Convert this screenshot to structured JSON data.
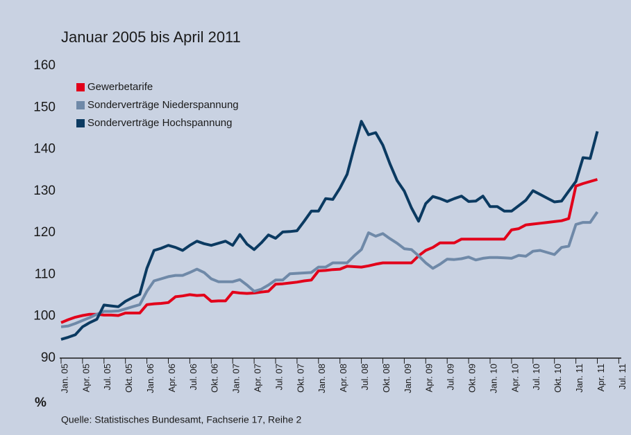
{
  "chart_data": {
    "type": "line",
    "title": "Januar 2005 bis April 2011",
    "y_label": "%",
    "source": "Quelle: Statistisches Bundesamt, Fachserie 17, Reihe 2",
    "categories": [
      "Jan. 05",
      null,
      null,
      "Apr. 05",
      null,
      null,
      "Jul. 05",
      null,
      null,
      "Okt. 05",
      null,
      null,
      "Jan. 06",
      null,
      null,
      "Apr. 06",
      null,
      null,
      "Jul. 06",
      null,
      null,
      "Okt. 06",
      null,
      null,
      "Jan. 07",
      null,
      null,
      "Apr. 07",
      null,
      null,
      "Jul. 07",
      null,
      null,
      "Okt. 07",
      null,
      null,
      "Jan. 08",
      null,
      null,
      "Apr. 08",
      null,
      null,
      "Jul. 08",
      null,
      null,
      "Okt. 08",
      null,
      null,
      "Jan. 09",
      null,
      null,
      "Apr. 09",
      null,
      null,
      "Jul. 09",
      null,
      null,
      "Okt. 09",
      null,
      null,
      "Jan. 10",
      null,
      null,
      "Apr. 10",
      null,
      null,
      "Jul. 10",
      null,
      null,
      "Okt. 10",
      null,
      null,
      "Jan. 11",
      null,
      null,
      "Apr. 11",
      null,
      null,
      "Jul. 11"
    ],
    "series": [
      {
        "name": "Gewerbetarife",
        "color": "#e2001a",
        "values": [
          98.5,
          99.2,
          99.8,
          100.2,
          100.5,
          100.5,
          100.3,
          100.3,
          100.2,
          100.8,
          100.8,
          100.8,
          102.8,
          103,
          103.1,
          103.3,
          104.7,
          104.9,
          105.2,
          105,
          105.1,
          103.6,
          103.7,
          103.7,
          105.8,
          105.6,
          105.5,
          105.6,
          105.8,
          106,
          107.7,
          107.8,
          108,
          108.2,
          108.5,
          108.7,
          110.9,
          111,
          111.2,
          111.3,
          112,
          111.9,
          111.8,
          112.1,
          112.5,
          112.8,
          112.8,
          112.8,
          112.8,
          112.8,
          114.5,
          115.8,
          116.5,
          117.6,
          117.6,
          117.6,
          118.5,
          118.5,
          118.5,
          118.5,
          118.5,
          118.5,
          118.5,
          120.7,
          121,
          121.9,
          122.1,
          122.3,
          122.5,
          122.7,
          122.9,
          123.4,
          131.2,
          131.8,
          132.3,
          132.8,
          null,
          null,
          null
        ]
      },
      {
        "name": "Sonderverträge Niederspannung",
        "color": "#6f89a8",
        "values": [
          97.5,
          97.7,
          98.3,
          99,
          99.7,
          100.5,
          101.2,
          101.2,
          101.3,
          101.8,
          102.3,
          102.8,
          106,
          108.5,
          109,
          109.5,
          109.8,
          109.8,
          110.5,
          111.3,
          110.5,
          109,
          108.3,
          108.3,
          108.3,
          108.8,
          107.5,
          106,
          106.5,
          107.5,
          108.7,
          108.7,
          110.2,
          110.3,
          110.4,
          110.5,
          111.8,
          111.8,
          112.8,
          112.8,
          112.8,
          114.5,
          116,
          120,
          119.2,
          119.8,
          118.6,
          117.5,
          116.2,
          116,
          114.5,
          112.8,
          111.5,
          112.5,
          113.7,
          113.6,
          113.8,
          114.2,
          113.5,
          113.9,
          114.1,
          114.1,
          114,
          113.9,
          114.6,
          114.4,
          115.6,
          115.8,
          115.3,
          114.8,
          116.5,
          116.8,
          122,
          122.5,
          122.5,
          125,
          null,
          null,
          null
        ]
      },
      {
        "name": "Sonderverträge Hochspannung",
        "color": "#0b3a61",
        "values": [
          94.5,
          95,
          95.6,
          97.5,
          98.5,
          99.3,
          102.7,
          102.5,
          102.3,
          103.6,
          104.5,
          105.3,
          111.5,
          115.8,
          116.3,
          117,
          116.5,
          115.8,
          117,
          118,
          117.4,
          117,
          117.5,
          118,
          117,
          119.6,
          117.3,
          116,
          117.6,
          119.5,
          118.7,
          120.2,
          120.3,
          120.5,
          122.8,
          125.2,
          125.2,
          128.2,
          128,
          130.7,
          134,
          140.5,
          146.7,
          143.5,
          144,
          141,
          136.5,
          132.5,
          130,
          126,
          122.8,
          127,
          128.7,
          128.2,
          127.5,
          128.2,
          128.8,
          127.5,
          127.6,
          128.8,
          126.3,
          126.3,
          125.2,
          125.2,
          126.5,
          127.8,
          130.1,
          129.2,
          128.3,
          127.4,
          127.6,
          130,
          132.3,
          138,
          137.8,
          144.3,
          null,
          null,
          null
        ]
      }
    ],
    "ylim": [
      90,
      160
    ],
    "yticks": [
      90,
      100,
      110,
      120,
      130,
      140,
      150,
      160
    ],
    "legend": "upper left"
  }
}
